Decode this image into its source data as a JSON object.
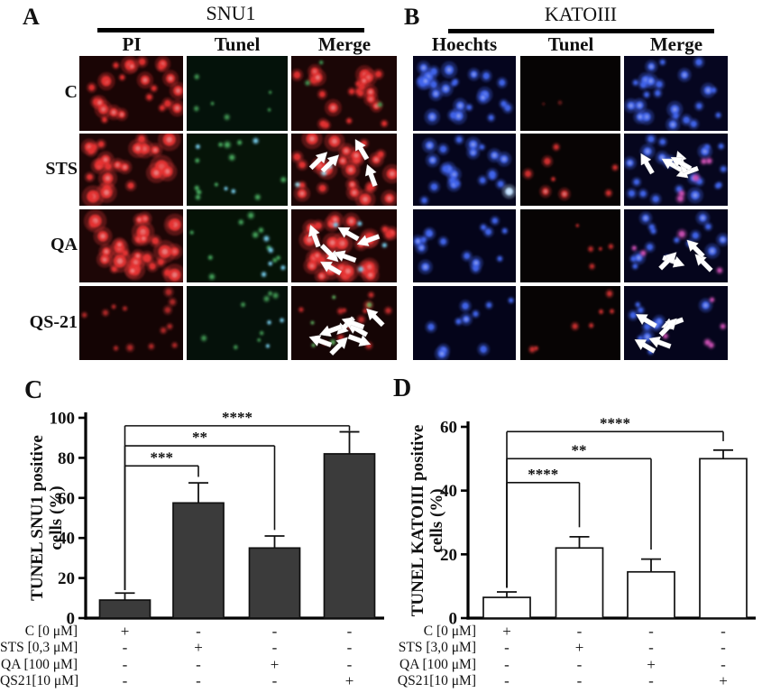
{
  "figure": {
    "panels": {
      "A": {
        "letter": "A",
        "title": "SNU1",
        "columns": [
          "PI",
          "Tunel",
          "Merge"
        ],
        "rows": [
          "C",
          "STS",
          "QA",
          "QS-21"
        ],
        "cells": [
          {
            "row": "C",
            "col": "PI",
            "bg": "#1a0505",
            "arrows": 0,
            "seed": 1,
            "dots": [
              {
                "color": "#e13232",
                "count": 24,
                "rmin": 2,
                "rmax": 5
              }
            ]
          },
          {
            "row": "C",
            "col": "Tunel",
            "bg": "#04120a",
            "arrows": 0,
            "seed": 2,
            "dots": [
              {
                "color": "#3f9150",
                "count": 6,
                "rmin": 1.2,
                "rmax": 2.2
              }
            ]
          },
          {
            "row": "C",
            "col": "Merge",
            "bg": "#1b0606",
            "arrows": 0,
            "seed": 3,
            "dots": [
              {
                "color": "#e13232",
                "count": 22,
                "rmin": 2,
                "rmax": 5
              },
              {
                "color": "#3f9150",
                "count": 3,
                "rmin": 1.2,
                "rmax": 2
              }
            ]
          },
          {
            "row": "STS",
            "col": "PI",
            "bg": "#1d0606",
            "arrows": 0,
            "seed": 4,
            "dots": [
              {
                "color": "#e63434",
                "count": 26,
                "rmin": 2.5,
                "rmax": 6.5
              }
            ]
          },
          {
            "row": "STS",
            "col": "Tunel",
            "bg": "#061408",
            "arrows": 0,
            "seed": 5,
            "dots": [
              {
                "color": "#46a55c",
                "count": 12,
                "rmin": 1.4,
                "rmax": 2.6
              },
              {
                "color": "#74c8e6",
                "count": 4,
                "rmin": 1.4,
                "rmax": 2.2
              }
            ]
          },
          {
            "row": "STS",
            "col": "Merge",
            "bg": "#1c0606",
            "arrows": 4,
            "seed": 6,
            "dots": [
              {
                "color": "#e63434",
                "count": 24,
                "rmin": 2.5,
                "rmax": 6
              },
              {
                "color": "#9fd8e8",
                "count": 3,
                "rmin": 1.3,
                "rmax": 2
              }
            ]
          },
          {
            "row": "QA",
            "col": "PI",
            "bg": "#1d0606",
            "arrows": 0,
            "seed": 7,
            "dots": [
              {
                "color": "#e63434",
                "count": 30,
                "rmin": 2.5,
                "rmax": 6.5
              }
            ]
          },
          {
            "row": "QA",
            "col": "Tunel",
            "bg": "#051206",
            "arrows": 0,
            "seed": 8,
            "dots": [
              {
                "color": "#43a058",
                "count": 10,
                "rmin": 1.4,
                "rmax": 2.6
              },
              {
                "color": "#74c8e6",
                "count": 5,
                "rmin": 1.4,
                "rmax": 2.2
              }
            ]
          },
          {
            "row": "QA",
            "col": "Merge",
            "bg": "#1b0505",
            "arrows": 6,
            "seed": 9,
            "dots": [
              {
                "color": "#e63434",
                "count": 28,
                "rmin": 2.5,
                "rmax": 6
              },
              {
                "color": "#74c8e6",
                "count": 4,
                "rmin": 1.3,
                "rmax": 2
              }
            ]
          },
          {
            "row": "QS-21",
            "col": "PI",
            "bg": "#140404",
            "arrows": 0,
            "seed": 10,
            "dots": [
              {
                "color": "#b02828",
                "count": 13,
                "rmin": 1.5,
                "rmax": 3
              }
            ]
          },
          {
            "row": "QS-21",
            "col": "Tunel",
            "bg": "#05110a",
            "arrows": 0,
            "seed": 11,
            "dots": [
              {
                "color": "#3f9150",
                "count": 8,
                "rmin": 1.3,
                "rmax": 2.4
              },
              {
                "color": "#74c8e6",
                "count": 3,
                "rmin": 1.3,
                "rmax": 2
              }
            ]
          },
          {
            "row": "QS-21",
            "col": "Merge",
            "bg": "#150505",
            "arrows": 8,
            "seed": 12,
            "dots": [
              {
                "color": "#c02a2a",
                "count": 12,
                "rmin": 1.5,
                "rmax": 3
              },
              {
                "color": "#5fae5f",
                "count": 5,
                "rmin": 1.3,
                "rmax": 2
              }
            ]
          }
        ]
      },
      "B": {
        "letter": "B",
        "title": "KATOIII",
        "columns": [
          "Hoechts",
          "Tunel",
          "Merge"
        ],
        "rows": [
          "C",
          "STS",
          "QA",
          "QS-21"
        ],
        "cells": [
          {
            "row": "C",
            "col": "Hoechts",
            "bg": "#05051e",
            "arrows": 0,
            "seed": 13,
            "dots": [
              {
                "color": "#4165ec",
                "count": 25,
                "rmin": 2,
                "rmax": 4.5
              }
            ]
          },
          {
            "row": "C",
            "col": "Tunel",
            "bg": "#060404",
            "arrows": 0,
            "seed": 14,
            "dots": [
              {
                "color": "#6b1a1a",
                "count": 2,
                "rmin": 1,
                "rmax": 1.8
              }
            ]
          },
          {
            "row": "C",
            "col": "Merge",
            "bg": "#060620",
            "arrows": 0,
            "seed": 15,
            "dots": [
              {
                "color": "#4165ec",
                "count": 24,
                "rmin": 2,
                "rmax": 4.5
              }
            ]
          },
          {
            "row": "STS",
            "col": "Hoechts",
            "bg": "#05051c",
            "arrows": 0,
            "seed": 16,
            "dots": [
              {
                "color": "#4165ec",
                "count": 21,
                "rmin": 2,
                "rmax": 4.5
              },
              {
                "color": "#bfe0ff",
                "count": 1,
                "rmin": 3,
                "rmax": 4
              }
            ]
          },
          {
            "row": "STS",
            "col": "Tunel",
            "bg": "#080404",
            "arrows": 0,
            "seed": 17,
            "dots": [
              {
                "color": "#d23232",
                "count": 8,
                "rmin": 1.5,
                "rmax": 4
              }
            ]
          },
          {
            "row": "STS",
            "col": "Merge",
            "bg": "#06061e",
            "arrows": 5,
            "seed": 18,
            "dots": [
              {
                "color": "#4165ec",
                "count": 20,
                "rmin": 2,
                "rmax": 4.5
              },
              {
                "color": "#c94fb2",
                "count": 5,
                "rmin": 1.8,
                "rmax": 3
              }
            ]
          },
          {
            "row": "QA",
            "col": "Hoechts",
            "bg": "#04041a",
            "arrows": 0,
            "seed": 19,
            "dots": [
              {
                "color": "#4165ec",
                "count": 15,
                "rmin": 2,
                "rmax": 4.2
              }
            ]
          },
          {
            "row": "QA",
            "col": "Tunel",
            "bg": "#070404",
            "arrows": 0,
            "seed": 20,
            "dots": [
              {
                "color": "#c02c2c",
                "count": 5,
                "rmin": 1.2,
                "rmax": 2.5
              }
            ]
          },
          {
            "row": "QA",
            "col": "Merge",
            "bg": "#05051c",
            "arrows": 4,
            "seed": 21,
            "dots": [
              {
                "color": "#4165ec",
                "count": 15,
                "rmin": 2,
                "rmax": 4.2
              },
              {
                "color": "#c94fb2",
                "count": 4,
                "rmin": 1.8,
                "rmax": 3
              }
            ]
          },
          {
            "row": "QS-21",
            "col": "Hoechts",
            "bg": "#04041a",
            "arrows": 0,
            "seed": 22,
            "dots": [
              {
                "color": "#4165ec",
                "count": 10,
                "rmin": 1.8,
                "rmax": 4
              }
            ]
          },
          {
            "row": "QS-21",
            "col": "Tunel",
            "bg": "#070404",
            "arrows": 0,
            "seed": 23,
            "dots": [
              {
                "color": "#c83030",
                "count": 7,
                "rmin": 1.5,
                "rmax": 3
              }
            ]
          },
          {
            "row": "QS-21",
            "col": "Merge",
            "bg": "#05051c",
            "arrows": 5,
            "seed": 24,
            "dots": [
              {
                "color": "#4165ec",
                "count": 10,
                "rmin": 1.8,
                "rmax": 4
              },
              {
                "color": "#c94fb2",
                "count": 5,
                "rmin": 1.8,
                "rmax": 2.8
              }
            ]
          }
        ]
      }
    },
    "arrow_color": "#ffffff"
  },
  "chart_data": [
    {
      "type": "bar",
      "panel_letter": "C",
      "title": "",
      "xlabel": "",
      "ylabel": "TUNEL SNU1 positive cells (%)",
      "ylabel_lines": [
        "TUNEL SNU1 positive",
        "cells (%)"
      ],
      "categories": [
        "C [0 μM]",
        "STS [0,3 μM]",
        "QA [100 μM]",
        "QS21[10 μM]"
      ],
      "values": [
        9,
        57.5,
        35,
        82
      ],
      "errors": [
        3.5,
        10,
        6,
        11
      ],
      "ylim": [
        0,
        100
      ],
      "yticks": [
        0,
        20,
        40,
        60,
        80,
        100
      ],
      "grid": false,
      "bar_fill": "#3b3b3b",
      "bar_stroke": "#111111",
      "significance": [
        {
          "from": 0,
          "to": 1,
          "label": "***",
          "height": 76,
          "rise_from": 14,
          "drop_to": 70.5
        },
        {
          "from": 0,
          "to": 2,
          "label": "**",
          "height": 86,
          "rise_from": 14,
          "drop_to": 44
        },
        {
          "from": 0,
          "to": 3,
          "label": "****",
          "height": 96,
          "rise_from": 14,
          "drop_to": 93.5
        }
      ],
      "treatment_matrix": {
        "signs": [
          [
            "+",
            "-",
            "-",
            "-"
          ],
          [
            "-",
            "+",
            "-",
            "-"
          ],
          [
            "-",
            "-",
            "+",
            "-"
          ],
          [
            "-",
            "-",
            "-",
            "+"
          ]
        ]
      }
    },
    {
      "type": "bar",
      "panel_letter": "D",
      "title": "",
      "xlabel": "",
      "ylabel": "TUNEL KATOIII positive cells (%)",
      "ylabel_lines": [
        "TUNEL KATOIII positive",
        "cells (%)"
      ],
      "categories": [
        "C [0 μM]",
        "STS [3,0 μM]",
        "QA [100 μM]",
        "QS21[10 μM]"
      ],
      "values": [
        6.5,
        22,
        14.5,
        50
      ],
      "errors": [
        1.7,
        3.5,
        4,
        2.7
      ],
      "ylim": [
        0,
        60
      ],
      "yticks": [
        0,
        20,
        40,
        60
      ],
      "grid": false,
      "bar_fill": "#ffffff",
      "bar_stroke": "#111111",
      "significance": [
        {
          "from": 0,
          "to": 1,
          "label": "****",
          "height": 42.5,
          "rise_from": 9.5,
          "drop_to": 28.5
        },
        {
          "from": 0,
          "to": 2,
          "label": "**",
          "height": 50,
          "rise_from": 9.5,
          "drop_to": 21.5
        },
        {
          "from": 0,
          "to": 3,
          "label": "****",
          "height": 58.5,
          "rise_from": 9.5,
          "drop_to": 55.5
        }
      ],
      "treatment_matrix": {
        "signs": [
          [
            "+",
            "-",
            "-",
            "-"
          ],
          [
            "-",
            "+",
            "-",
            "-"
          ],
          [
            "-",
            "-",
            "+",
            "-"
          ],
          [
            "-",
            "-",
            "-",
            "+"
          ]
        ]
      }
    }
  ]
}
